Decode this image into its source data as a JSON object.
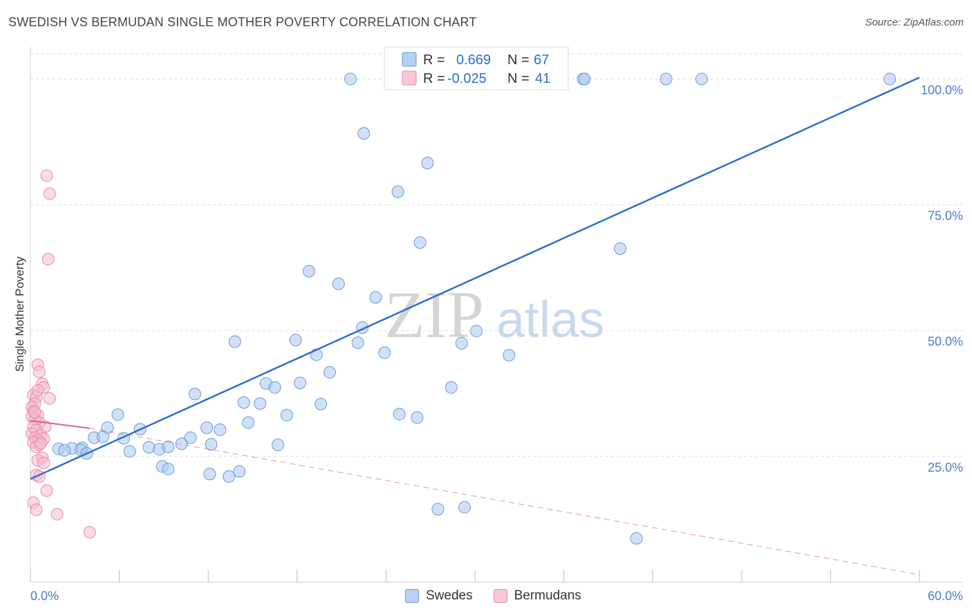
{
  "header": {
    "title": "SWEDISH VS BERMUDAN SINGLE MOTHER POVERTY CORRELATION CHART",
    "source": "Source: ZipAtlas.com"
  },
  "watermark": {
    "zip": "ZIP",
    "atlas": "atlas"
  },
  "colors": {
    "swedes_fill": "#a9c8f0",
    "swedes_stroke": "#6b98d6",
    "swedes_line": "#2a6fcf",
    "bermudans_fill": "#f6bccd",
    "bermudans_stroke": "#e889a6",
    "bermudans_line": "#e05f86",
    "tick_label": "#4a7bd0",
    "grid": "#dddddd"
  },
  "stats_legend": [
    {
      "r_label": "R =",
      "r_value": "0.669",
      "n_label": "N =",
      "n_value": "67"
    },
    {
      "r_label": "R =",
      "r_value": "-0.025",
      "n_label": "N =",
      "n_value": "41"
    }
  ],
  "chart_data": {
    "type": "scatter",
    "title": "SWEDISH VS BERMUDAN SINGLE MOTHER POVERTY CORRELATION CHART",
    "xlabel": "",
    "ylabel": "Single Mother Poverty",
    "xlim": [
      0,
      60
    ],
    "ylim": [
      0,
      105
    ],
    "x_tick_labels": [
      "0.0%",
      "60.0%"
    ],
    "y_ticks": [
      25,
      50,
      75,
      100
    ],
    "y_tick_labels": [
      "25.0%",
      "50.0%",
      "75.0%",
      "100.0%"
    ],
    "grid": true,
    "legend_position": "top-center",
    "series": [
      {
        "name": "Swedes",
        "points": [
          [
            21.6,
            100
          ],
          [
            31.4,
            100
          ],
          [
            37.3,
            100
          ],
          [
            37.4,
            100
          ],
          [
            42.9,
            100
          ],
          [
            45.3,
            100
          ],
          [
            58,
            100
          ],
          [
            22.5,
            89.2
          ],
          [
            26.8,
            83.3
          ],
          [
            24.8,
            77.6
          ],
          [
            26.3,
            67.5
          ],
          [
            39.8,
            66.3
          ],
          [
            18.8,
            61.8
          ],
          [
            20.8,
            59.3
          ],
          [
            23.3,
            56.6
          ],
          [
            22.4,
            50.6
          ],
          [
            30.1,
            49.9
          ],
          [
            13.8,
            47.8
          ],
          [
            17.9,
            48.1
          ],
          [
            22.1,
            47.6
          ],
          [
            29.1,
            47.5
          ],
          [
            19.3,
            45.2
          ],
          [
            23.9,
            45.6
          ],
          [
            32.3,
            45.1
          ],
          [
            20.2,
            41.7
          ],
          [
            18.2,
            39.6
          ],
          [
            15.9,
            39.5
          ],
          [
            16.5,
            38.7
          ],
          [
            28.4,
            38.7
          ],
          [
            11.1,
            37.4
          ],
          [
            14.4,
            35.7
          ],
          [
            15.5,
            35.5
          ],
          [
            19.6,
            35.4
          ],
          [
            24.9,
            33.4
          ],
          [
            17.3,
            33.2
          ],
          [
            26.1,
            32.7
          ],
          [
            14.7,
            31.7
          ],
          [
            5.9,
            33.3
          ],
          [
            5.2,
            30.7
          ],
          [
            7.4,
            30.4
          ],
          [
            11.9,
            30.7
          ],
          [
            12.8,
            30.3
          ],
          [
            4.3,
            28.7
          ],
          [
            4.9,
            28.9
          ],
          [
            6.3,
            28.6
          ],
          [
            10.8,
            28.7
          ],
          [
            10.2,
            27.5
          ],
          [
            16.7,
            27.3
          ],
          [
            8.0,
            26.8
          ],
          [
            8.7,
            26.4
          ],
          [
            9.3,
            26.9
          ],
          [
            2.8,
            26.6
          ],
          [
            3.5,
            26.7
          ],
          [
            1.9,
            26.5
          ],
          [
            3.4,
            26.3
          ],
          [
            2.3,
            26.2
          ],
          [
            6.7,
            26.0
          ],
          [
            3.8,
            25.6
          ],
          [
            12.2,
            27.4
          ],
          [
            8.9,
            23.0
          ],
          [
            9.3,
            22.5
          ],
          [
            13.4,
            21.0
          ],
          [
            12.1,
            21.5
          ],
          [
            14.1,
            22.0
          ],
          [
            27.5,
            14.5
          ],
          [
            29.3,
            14.9
          ],
          [
            40.9,
            8.7
          ]
        ]
      },
      {
        "name": "Bermudans",
        "points": [
          [
            1.1,
            80.8
          ],
          [
            1.3,
            77.2
          ],
          [
            1.2,
            64.2
          ],
          [
            0.5,
            43.2
          ],
          [
            0.6,
            41.8
          ],
          [
            0.8,
            39.4
          ],
          [
            0.9,
            38.7
          ],
          [
            0.2,
            37.2
          ],
          [
            1.3,
            36.5
          ],
          [
            0.4,
            36.8
          ],
          [
            0.3,
            35.5
          ],
          [
            0.1,
            34.8
          ],
          [
            0.2,
            34.0
          ],
          [
            0.5,
            33.2
          ],
          [
            0.1,
            32.9
          ],
          [
            0.3,
            32.3
          ],
          [
            0.6,
            31.7
          ],
          [
            0.2,
            30.8
          ],
          [
            1.0,
            30.9
          ],
          [
            0.4,
            30.2
          ],
          [
            0.1,
            29.5
          ],
          [
            0.7,
            29.2
          ],
          [
            0.3,
            28.7
          ],
          [
            0.9,
            28.5
          ],
          [
            0.5,
            28.2
          ],
          [
            0.2,
            27.8
          ],
          [
            0.6,
            27.3
          ],
          [
            0.4,
            26.9
          ],
          [
            0.8,
            24.7
          ],
          [
            0.5,
            24.2
          ],
          [
            0.9,
            23.7
          ],
          [
            0.4,
            21.3
          ],
          [
            0.6,
            21.0
          ],
          [
            1.1,
            18.2
          ],
          [
            0.2,
            15.8
          ],
          [
            0.4,
            14.4
          ],
          [
            1.8,
            13.5
          ],
          [
            4.0,
            9.9
          ],
          [
            0.3,
            33.8
          ],
          [
            0.7,
            27.6
          ],
          [
            0.5,
            38.1
          ]
        ]
      }
    ],
    "trend_lines": [
      {
        "series": "Swedes",
        "x": [
          0,
          60
        ],
        "y": [
          20.5,
          100.3
        ],
        "style": "solid"
      },
      {
        "series": "Bermudans",
        "x": [
          0,
          4
        ],
        "y": [
          32.1,
          30.6
        ],
        "style": "solid"
      },
      {
        "series": "Bermudans",
        "x": [
          4,
          60
        ],
        "y": [
          30.6,
          1.5
        ],
        "style": "dashed"
      }
    ]
  }
}
